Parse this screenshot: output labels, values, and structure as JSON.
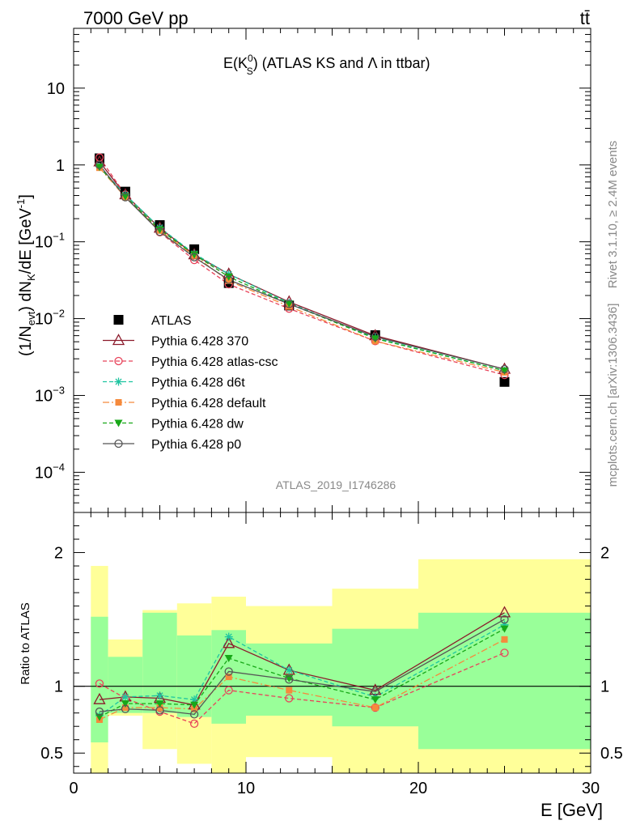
{
  "header": {
    "left": "7000 GeV pp",
    "right": "tt̄"
  },
  "side_labels": {
    "rivet": "Rivet 3.1.10, ≥ 2.4M events",
    "mcplots": "mcplots.cern.ch [arXiv:1306.3436]"
  },
  "chart_data": [
    {
      "panel": "main",
      "type": "line",
      "title_main": "E(K",
      "title_sup": "0",
      "title_sub": "S",
      "title_rest": ") (ATLAS KS and Λ in ttbar)",
      "ylabel": "(1/N_evt) dN_K/dE [GeV^-1]",
      "ylabel_parts": {
        "a": "(1/N",
        "a_sub": "evt",
        "b": ") dN",
        "b_sub": "K",
        "c": "/dE [GeV",
        "c_sup": "-1",
        "d": "]"
      },
      "yscale": "log",
      "ylim": [
        3e-05,
        60
      ],
      "xlim": [
        0,
        30
      ],
      "yticks": [
        {
          "value": 10,
          "label": "10"
        },
        {
          "value": 1,
          "label": "1"
        },
        {
          "value": 0.1,
          "label": "10",
          "exp": "−1"
        },
        {
          "value": 0.01,
          "label": "10",
          "exp": "−2"
        },
        {
          "value": 0.001,
          "label": "10",
          "exp": "−3"
        },
        {
          "value": 0.0001,
          "label": "10",
          "exp": "−4"
        }
      ],
      "watermark": "ATLAS_2019_I1746286",
      "legend_position": "bottom-left",
      "x": [
        1.5,
        3,
        5,
        7,
        9,
        12.5,
        17.5,
        25
      ],
      "series": [
        {
          "name": "ATLAS",
          "style": "data",
          "color": "#000000",
          "marker": "square-filled",
          "values": [
            1.22,
            0.45,
            0.165,
            0.08,
            0.029,
            0.0148,
            0.0061,
            0.0015
          ]
        },
        {
          "name": "Pythia 6.428 370",
          "style": "solid",
          "color": "#8b1a2b",
          "marker": "triangle-open",
          "values": [
            1.1,
            0.41,
            0.151,
            0.068,
            0.038,
            0.0165,
            0.006,
            0.0022
          ]
        },
        {
          "name": "Pythia 6.428 atlas-csc",
          "style": "dashed",
          "color": "#e8435a",
          "marker": "circle-open",
          "values": [
            1.25,
            0.41,
            0.133,
            0.058,
            0.028,
            0.0135,
            0.0051,
            0.00185
          ]
        },
        {
          "name": "Pythia 6.428 d6t",
          "style": "dashed",
          "color": "#1ec4a0",
          "marker": "star",
          "values": [
            0.95,
            0.41,
            0.153,
            0.07,
            0.038,
            0.016,
            0.0056,
            0.0021
          ]
        },
        {
          "name": "Pythia 6.428 default",
          "style": "dashdot",
          "color": "#f58a3c",
          "marker": "square-filled-small",
          "values": [
            0.92,
            0.38,
            0.14,
            0.066,
            0.031,
            0.0144,
            0.0051,
            0.002
          ]
        },
        {
          "name": "Pythia 6.428 dw",
          "style": "dashed",
          "color": "#18a818",
          "marker": "triangle-down-filled",
          "values": [
            0.94,
            0.39,
            0.144,
            0.068,
            0.035,
            0.0156,
            0.0055,
            0.0021
          ]
        },
        {
          "name": "Pythia 6.428 p0",
          "style": "solid",
          "color": "#555555",
          "marker": "circle-open",
          "values": [
            1.0,
            0.38,
            0.135,
            0.063,
            0.032,
            0.0155,
            0.0058,
            0.0022
          ]
        }
      ]
    },
    {
      "panel": "ratio",
      "type": "line",
      "ylabel": "Ratio to ATLAS",
      "xlabel": "E [GeV]",
      "xlim": [
        0,
        30
      ],
      "ylim": [
        0.35,
        2.3
      ],
      "xticks": [
        0,
        10,
        20,
        30
      ],
      "yticks": [
        {
          "value": 0.5,
          "label": "0.5"
        },
        {
          "value": 1,
          "label": "1"
        },
        {
          "value": 2,
          "label": "2"
        }
      ],
      "bands": [
        {
          "x0": 1,
          "x1": 2,
          "green": [
            0.58,
            1.52
          ],
          "yellow": [
            0.35,
            1.9
          ]
        },
        {
          "x0": 2,
          "x1": 4,
          "green": [
            0.8,
            1.22
          ],
          "yellow": [
            0.78,
            1.35
          ]
        },
        {
          "x0": 4,
          "x1": 6,
          "green": [
            0.8,
            1.55
          ],
          "yellow": [
            0.53,
            1.57
          ]
        },
        {
          "x0": 6,
          "x1": 8,
          "green": [
            0.77,
            1.38
          ],
          "yellow": [
            0.42,
            1.62
          ]
        },
        {
          "x0": 8,
          "x1": 10,
          "green": [
            0.72,
            1.42
          ],
          "yellow": [
            0.35,
            1.67
          ]
        },
        {
          "x0": 10,
          "x1": 15,
          "green": [
            0.78,
            1.32
          ],
          "yellow": [
            0.47,
            1.6
          ]
        },
        {
          "x0": 15,
          "x1": 20,
          "green": [
            0.7,
            1.43
          ],
          "yellow": [
            0.35,
            1.73
          ]
        },
        {
          "x0": 20,
          "x1": 30,
          "green": [
            0.53,
            1.55
          ],
          "yellow": [
            0.35,
            1.95
          ]
        }
      ],
      "x": [
        1.5,
        3,
        5,
        7,
        9,
        12.5,
        17.5,
        25
      ],
      "series": [
        {
          "name": "Pythia 6.428 370",
          "values": [
            0.9,
            0.92,
            0.91,
            0.86,
            1.32,
            1.12,
            0.97,
            1.55
          ]
        },
        {
          "name": "Pythia 6.428 atlas-csc",
          "values": [
            1.02,
            0.91,
            0.81,
            0.72,
            0.97,
            0.91,
            0.84,
            1.25
          ]
        },
        {
          "name": "Pythia 6.428 d6t",
          "values": [
            0.78,
            0.92,
            0.93,
            0.9,
            1.37,
            1.12,
            0.92,
            1.46
          ]
        },
        {
          "name": "Pythia 6.428 default",
          "values": [
            0.75,
            0.84,
            0.84,
            0.83,
            1.07,
            0.97,
            0.84,
            1.35
          ]
        },
        {
          "name": "Pythia 6.428 dw",
          "values": [
            0.77,
            0.87,
            0.87,
            0.86,
            1.21,
            1.06,
            0.9,
            1.43
          ]
        },
        {
          "name": "Pythia 6.428 p0",
          "values": [
            0.81,
            0.83,
            0.82,
            0.79,
            1.11,
            1.05,
            0.96,
            1.5
          ]
        }
      ]
    }
  ]
}
